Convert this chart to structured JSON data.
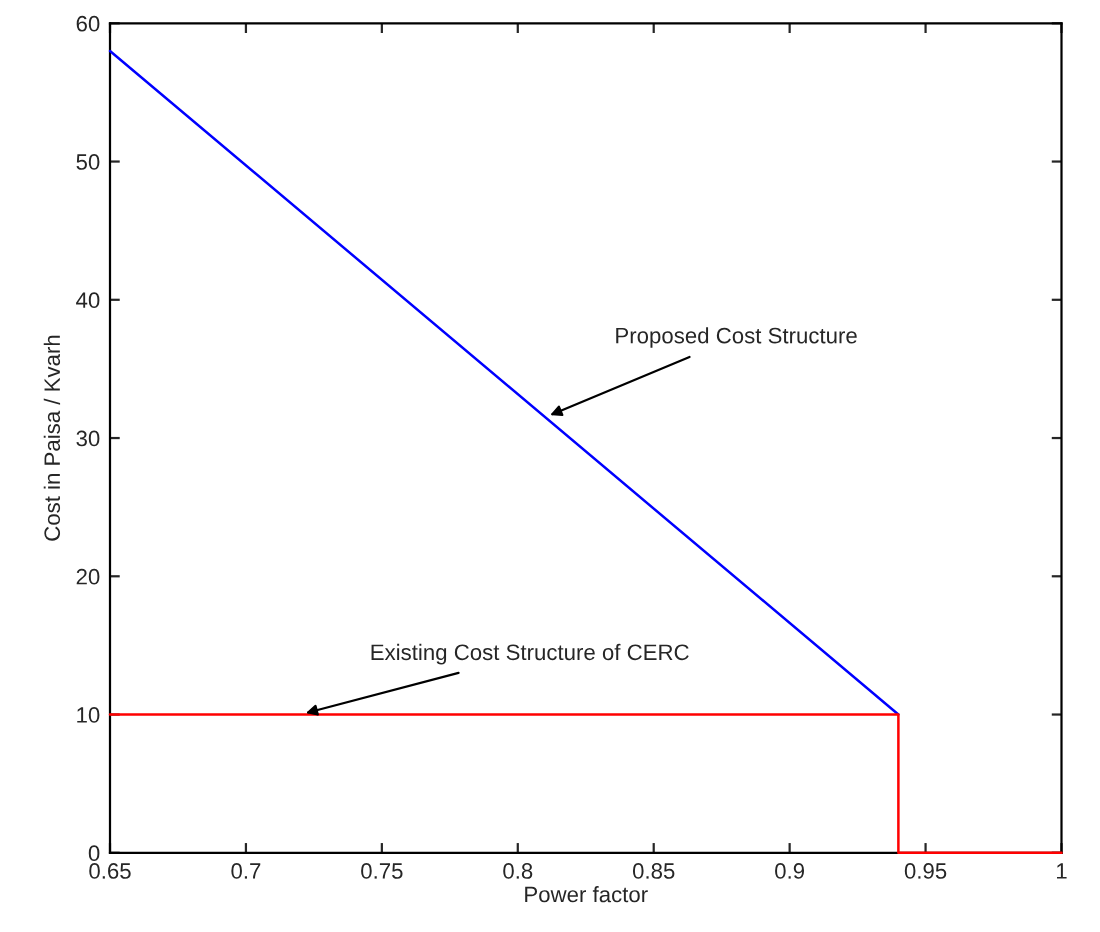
{
  "chart_data": {
    "type": "line",
    "xlabel": "Power factor",
    "ylabel": "Cost in Paisa / Kvarh",
    "series": [
      {
        "color": "#0000ff",
        "x": [
          0.65,
          0.94
        ],
        "values": [
          58,
          10
        ]
      },
      {
        "color": "#ff0000",
        "x": [
          0.65,
          0.94,
          0.94,
          1
        ],
        "values": [
          10,
          10,
          0,
          0
        ]
      }
    ],
    "annotations": [
      {
        "text": "Proposed Cost Structure",
        "x": 0.81,
        "y": 31.5
      },
      {
        "text": "Existing Cost Structure of CERC",
        "x": 0.72,
        "y": 10
      }
    ],
    "xlim": [
      0.65,
      1
    ],
    "xticks": [
      0.65,
      0.7,
      0.75,
      0.8,
      0.85,
      0.9,
      0.95,
      1
    ],
    "ylim": [
      0,
      60
    ],
    "yticks": [
      0,
      10,
      20,
      30,
      40,
      50,
      60
    ],
    "grid": false
  }
}
